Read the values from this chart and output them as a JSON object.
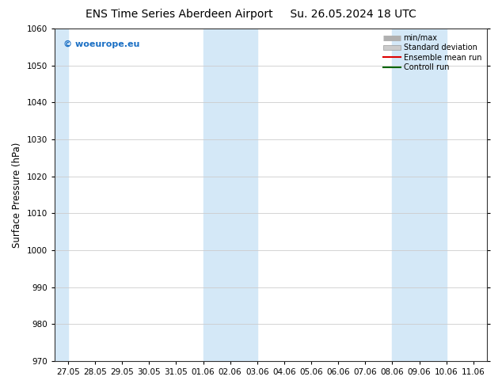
{
  "title": "ENS Time Series Aberdeen Airport",
  "title2": "Su. 26.05.2024 18 UTC",
  "ylabel": "Surface Pressure (hPa)",
  "ylim": [
    970,
    1060
  ],
  "yticks": [
    970,
    980,
    990,
    1000,
    1010,
    1020,
    1030,
    1040,
    1050,
    1060
  ],
  "xtick_labels": [
    "27.05",
    "28.05",
    "29.05",
    "30.05",
    "31.05",
    "01.06",
    "02.06",
    "03.06",
    "04.06",
    "05.06",
    "06.06",
    "07.06",
    "08.06",
    "09.06",
    "10.06",
    "11.06"
  ],
  "shaded_bands": [
    [
      "01.06",
      "03.06"
    ],
    [
      "08.06",
      "10.06"
    ]
  ],
  "first_shade_left": "27.05",
  "shaded_color": "#d4e8f7",
  "watermark_text": "© woeurope.eu",
  "watermark_color": "#1a6fc4",
  "legend_entries": [
    {
      "label": "min/max",
      "color": "#b0b0b0",
      "style": "minmax"
    },
    {
      "label": "Standard deviation",
      "color": "#cccccc",
      "style": "fill"
    },
    {
      "label": "Ensemble mean run",
      "color": "#dd0000",
      "style": "line",
      "lw": 1.5
    },
    {
      "label": "Controll run",
      "color": "#006600",
      "style": "line",
      "lw": 1.5
    }
  ],
  "bg_color": "#ffffff",
  "grid_color": "#cccccc",
  "title_fontsize": 10,
  "tick_fontsize": 7.5,
  "ylabel_fontsize": 8.5,
  "watermark_fontsize": 8
}
